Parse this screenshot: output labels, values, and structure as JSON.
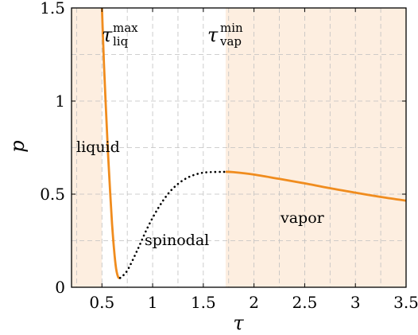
{
  "chart_data": {
    "type": "line",
    "xlabel": "τ",
    "ylabel": "p",
    "xlim": [
      0.2,
      3.5
    ],
    "ylim": [
      0,
      1.5
    ],
    "xticks": [
      0.5,
      1,
      1.5,
      2,
      2.5,
      3,
      3.5
    ],
    "xtick_labels": [
      "0.5",
      "1",
      "1.5",
      "2",
      "2.5",
      "3",
      "3.5"
    ],
    "yticks": [
      0,
      0.5,
      1,
      1.5
    ],
    "ytick_labels": [
      "0",
      "0.5",
      "1",
      "1.5"
    ],
    "grid": true,
    "colors": {
      "curve": "#f08c1e",
      "fill": "#fdeee0",
      "spinodal": "#000000",
      "grid": "#c0c0c0"
    },
    "series": [
      {
        "style": "solid-orange",
        "points": [
          [
            0.5,
            1.5
          ],
          [
            0.52,
            1.2
          ],
          [
            0.54,
            0.95
          ],
          [
            0.56,
            0.72
          ],
          [
            0.58,
            0.52
          ],
          [
            0.6,
            0.34
          ],
          [
            0.62,
            0.2
          ],
          [
            0.64,
            0.1
          ],
          [
            0.66,
            0.055
          ],
          [
            0.68,
            0.05
          ]
        ]
      },
      {
        "style": "dotted-black",
        "points": [
          [
            0.68,
            0.05
          ],
          [
            0.75,
            0.09
          ],
          [
            0.85,
            0.2
          ],
          [
            0.95,
            0.32
          ],
          [
            1.05,
            0.42
          ],
          [
            1.15,
            0.5
          ],
          [
            1.25,
            0.555
          ],
          [
            1.35,
            0.59
          ],
          [
            1.45,
            0.61
          ],
          [
            1.55,
            0.618
          ],
          [
            1.72,
            0.62
          ]
        ]
      },
      {
        "style": "solid-orange",
        "points": [
          [
            1.72,
            0.62
          ],
          [
            1.8,
            0.618
          ],
          [
            2.0,
            0.605
          ],
          [
            2.25,
            0.582
          ],
          [
            2.5,
            0.558
          ],
          [
            2.75,
            0.532
          ],
          [
            3.0,
            0.508
          ],
          [
            3.25,
            0.485
          ],
          [
            3.5,
            0.465
          ]
        ]
      }
    ],
    "shaded_regions": [
      {
        "name": "liquid",
        "x_range": [
          0.2,
          0.5
        ]
      },
      {
        "name": "vapor",
        "x_range": [
          1.72,
          3.5
        ]
      }
    ],
    "annotations": {
      "liquid": "liquid",
      "vapor": "vapor",
      "spinodal": "spinodal",
      "tau_liq_main": "τ",
      "tau_liq_sup": "max",
      "tau_liq_sub": "liq",
      "tau_vap_main": "τ",
      "tau_vap_sup": "min",
      "tau_vap_sub": "vap"
    }
  }
}
